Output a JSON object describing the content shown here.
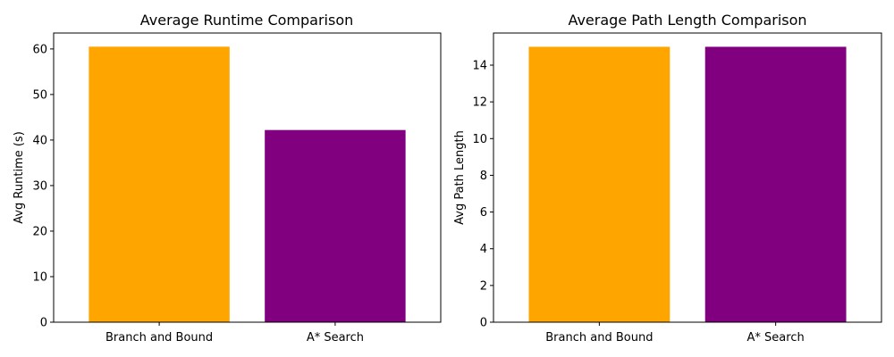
{
  "chart_data": [
    {
      "type": "bar",
      "title": "Average Runtime Comparison",
      "xlabel": "",
      "ylabel": "Avg Runtime (s)",
      "categories": [
        "Branch and Bound",
        "A* Search"
      ],
      "values": [
        60.5,
        42.2
      ],
      "colors": [
        "#ffa500",
        "#800080"
      ],
      "ylim": [
        0,
        63.5
      ],
      "yticks": [
        0,
        10,
        20,
        30,
        40,
        50,
        60
      ],
      "grid": false,
      "legend": "none"
    },
    {
      "type": "bar",
      "title": "Average Path Length Comparison",
      "xlabel": "",
      "ylabel": "Avg Path Length",
      "categories": [
        "Branch and Bound",
        "A* Search"
      ],
      "values": [
        15.0,
        15.0
      ],
      "colors": [
        "#ffa500",
        "#800080"
      ],
      "ylim": [
        0,
        15.75
      ],
      "yticks": [
        0,
        2,
        4,
        6,
        8,
        10,
        12,
        14
      ],
      "grid": false,
      "legend": "none"
    }
  ]
}
